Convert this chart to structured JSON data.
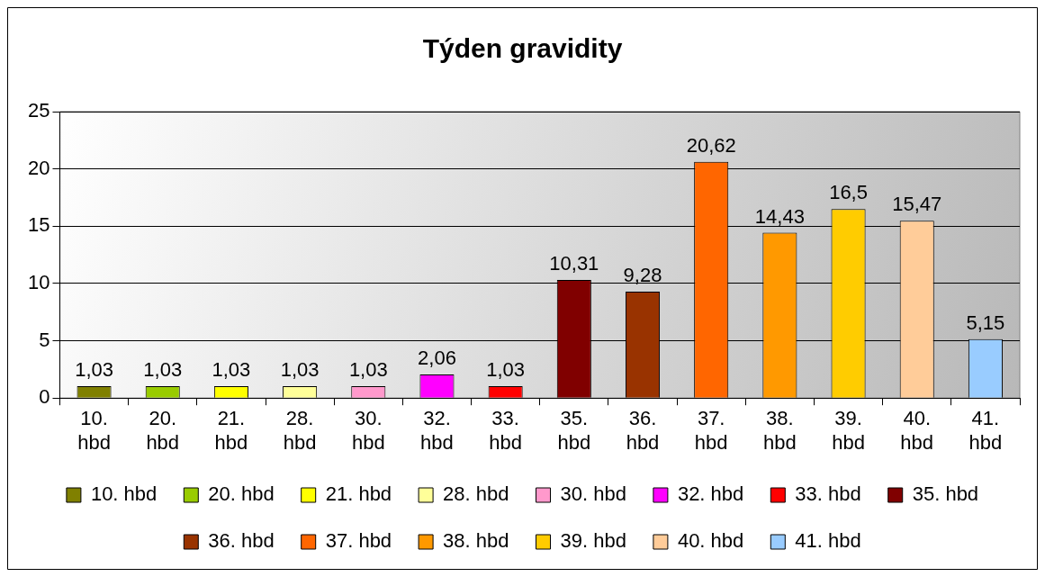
{
  "chart_data": {
    "type": "bar",
    "title": "Týden gravidity",
    "categories": [
      "10. hbd",
      "20. hbd",
      "21. hbd",
      "28. hbd",
      "30. hbd",
      "32. hbd",
      "33. hbd",
      "35. hbd",
      "36. hbd",
      "37. hbd",
      "38. hbd",
      "39. hbd",
      "40. hbd",
      "41. hbd"
    ],
    "series": [
      {
        "name": "10. hbd",
        "color": "#808000",
        "values": [
          1.03,
          null,
          null,
          null,
          null,
          null,
          null,
          null,
          null,
          null,
          null,
          null,
          null,
          null
        ],
        "value_labels": [
          "1,03",
          null,
          null,
          null,
          null,
          null,
          null,
          null,
          null,
          null,
          null,
          null,
          null,
          null
        ]
      },
      {
        "name": "20. hbd",
        "color": "#99cc00",
        "values": [
          null,
          1.03,
          null,
          null,
          null,
          null,
          null,
          null,
          null,
          null,
          null,
          null,
          null,
          null
        ],
        "value_labels": [
          null,
          "1,03",
          null,
          null,
          null,
          null,
          null,
          null,
          null,
          null,
          null,
          null,
          null,
          null
        ]
      },
      {
        "name": "21. hbd",
        "color": "#ffff00",
        "values": [
          null,
          null,
          1.03,
          null,
          null,
          null,
          null,
          null,
          null,
          null,
          null,
          null,
          null,
          null
        ],
        "value_labels": [
          null,
          null,
          "1,03",
          null,
          null,
          null,
          null,
          null,
          null,
          null,
          null,
          null,
          null,
          null
        ]
      },
      {
        "name": "28. hbd",
        "color": "#ffff99",
        "values": [
          null,
          null,
          null,
          1.03,
          null,
          null,
          null,
          null,
          null,
          null,
          null,
          null,
          null,
          null
        ],
        "value_labels": [
          null,
          null,
          null,
          "1,03",
          null,
          null,
          null,
          null,
          null,
          null,
          null,
          null,
          null,
          null
        ]
      },
      {
        "name": "30. hbd",
        "color": "#ff99cc",
        "values": [
          null,
          null,
          null,
          null,
          1.03,
          null,
          null,
          null,
          null,
          null,
          null,
          null,
          null,
          null
        ],
        "value_labels": [
          null,
          null,
          null,
          null,
          "1,03",
          null,
          null,
          null,
          null,
          null,
          null,
          null,
          null,
          null
        ]
      },
      {
        "name": "32. hbd",
        "color": "#ff00ff",
        "values": [
          null,
          null,
          null,
          null,
          null,
          2.06,
          null,
          null,
          null,
          null,
          null,
          null,
          null,
          null
        ],
        "value_labels": [
          null,
          null,
          null,
          null,
          null,
          "2,06",
          null,
          null,
          null,
          null,
          null,
          null,
          null,
          null
        ]
      },
      {
        "name": "33. hbd",
        "color": "#ff0000",
        "values": [
          null,
          null,
          null,
          null,
          null,
          null,
          1.03,
          null,
          null,
          null,
          null,
          null,
          null,
          null
        ],
        "value_labels": [
          null,
          null,
          null,
          null,
          null,
          null,
          "1,03",
          null,
          null,
          null,
          null,
          null,
          null,
          null
        ]
      },
      {
        "name": "35. hbd",
        "color": "#800000",
        "values": [
          null,
          null,
          null,
          null,
          null,
          null,
          null,
          10.31,
          null,
          null,
          null,
          null,
          null,
          null
        ],
        "value_labels": [
          null,
          null,
          null,
          null,
          null,
          null,
          null,
          "10,31",
          null,
          null,
          null,
          null,
          null,
          null
        ]
      },
      {
        "name": "36. hbd",
        "color": "#993300",
        "values": [
          null,
          null,
          null,
          null,
          null,
          null,
          null,
          null,
          9.28,
          null,
          null,
          null,
          null,
          null
        ],
        "value_labels": [
          null,
          null,
          null,
          null,
          null,
          null,
          null,
          null,
          "9,28",
          null,
          null,
          null,
          null,
          null
        ]
      },
      {
        "name": "37. hbd",
        "color": "#ff6600",
        "values": [
          null,
          null,
          null,
          null,
          null,
          null,
          null,
          null,
          null,
          20.62,
          null,
          null,
          null,
          null
        ],
        "value_labels": [
          null,
          null,
          null,
          null,
          null,
          null,
          null,
          null,
          null,
          "20,62",
          null,
          null,
          null,
          null
        ]
      },
      {
        "name": "38. hbd",
        "color": "#ff9900",
        "values": [
          null,
          null,
          null,
          null,
          null,
          null,
          null,
          null,
          null,
          null,
          14.43,
          null,
          null,
          null
        ],
        "value_labels": [
          null,
          null,
          null,
          null,
          null,
          null,
          null,
          null,
          null,
          null,
          "14,43",
          null,
          null,
          null
        ]
      },
      {
        "name": "39. hbd",
        "color": "#ffcc00",
        "values": [
          null,
          null,
          null,
          null,
          null,
          null,
          null,
          null,
          null,
          null,
          null,
          16.5,
          null,
          null
        ],
        "value_labels": [
          null,
          null,
          null,
          null,
          null,
          null,
          null,
          null,
          null,
          null,
          null,
          "16,5",
          null,
          null
        ]
      },
      {
        "name": "40. hbd",
        "color": "#ffcc99",
        "values": [
          null,
          null,
          null,
          null,
          null,
          null,
          null,
          null,
          null,
          null,
          null,
          null,
          15.47,
          null
        ],
        "value_labels": [
          null,
          null,
          null,
          null,
          null,
          null,
          null,
          null,
          null,
          null,
          null,
          null,
          "15,47",
          null
        ]
      },
      {
        "name": "41. hbd",
        "color": "#99ccff",
        "values": [
          null,
          null,
          null,
          null,
          null,
          null,
          null,
          null,
          null,
          null,
          null,
          null,
          null,
          5.15
        ],
        "value_labels": [
          null,
          null,
          null,
          null,
          null,
          null,
          null,
          null,
          null,
          null,
          null,
          null,
          null,
          "5,15"
        ]
      }
    ],
    "ylim": [
      0,
      25
    ],
    "yticks": [
      0,
      5,
      10,
      15,
      20,
      25
    ],
    "grid": "y",
    "legend": "bottom"
  }
}
